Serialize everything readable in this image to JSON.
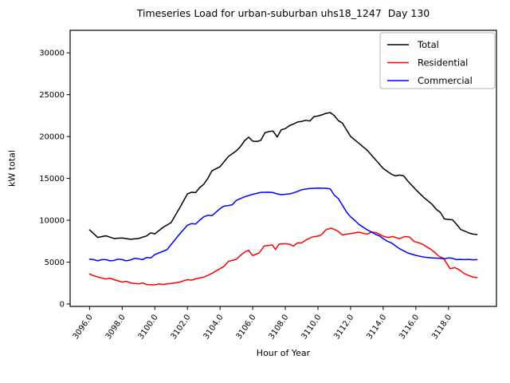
{
  "title": "Timeseries Load for urban-suburban uhs18_1247  Day 130",
  "chart_data": {
    "type": "line",
    "title": "Timeseries Load for urban-suburban uhs18_1247  Day 130",
    "xlabel": "Hour of Year",
    "ylabel": "kW total",
    "xlim": [
      3094.81,
      3120.94
    ],
    "ylim": [
      -290,
      32690
    ],
    "xticks": [
      3096,
      3098,
      3100,
      3102,
      3104,
      3106,
      3108,
      3110,
      3112,
      3114,
      3116,
      3118
    ],
    "xtick_labels": [
      "3096.0",
      "3098.0",
      "3100.0",
      "3102.0",
      "3104.0",
      "3106.0",
      "3108.0",
      "3110.0",
      "3112.0",
      "3114.0",
      "3116.0",
      "3118.0"
    ],
    "yticks": [
      0,
      5000,
      10000,
      15000,
      20000,
      25000,
      30000
    ],
    "ytick_labels": [
      "0",
      "5000",
      "10000",
      "15000",
      "20000",
      "25000",
      "30000"
    ],
    "grid": false,
    "legend_position": "upper right",
    "line_width": 1.5,
    "series": [
      {
        "name": "Total",
        "color": "#000000",
        "x": [
          3096,
          3096.5,
          3097,
          3097.5,
          3098,
          3098.5,
          3099,
          3099.5,
          3099.75,
          3100,
          3100.5,
          3101,
          3101.5,
          3102,
          3102.25,
          3102.5,
          3102.75,
          3103,
          3103.25,
          3103.5,
          3104,
          3104.5,
          3105,
          3105.25,
          3105.5,
          3105.75,
          3106,
          3106.25,
          3106.5,
          3106.75,
          3107,
          3107.25,
          3107.5,
          3107.75,
          3108,
          3108.25,
          3108.5,
          3108.75,
          3109,
          3109.25,
          3109.5,
          3109.75,
          3110,
          3110.25,
          3110.5,
          3110.75,
          3111,
          3111.25,
          3111.5,
          3112,
          3112.5,
          3113,
          3113.5,
          3114,
          3114.5,
          3114.75,
          3115,
          3115.25,
          3115.5,
          3116,
          3116.5,
          3117,
          3117.25,
          3117.5,
          3117.75,
          3118,
          3118.25,
          3118.5,
          3118.75,
          3119,
          3119.25,
          3119.5,
          3119.75
        ],
        "y": [
          8850,
          7950,
          8150,
          7820,
          7880,
          7730,
          7820,
          8130,
          8500,
          8370,
          9150,
          9720,
          11400,
          13150,
          13350,
          13300,
          13900,
          14300,
          15000,
          15900,
          16400,
          17600,
          18300,
          18800,
          19500,
          19930,
          19450,
          19400,
          19550,
          20450,
          20600,
          20650,
          19950,
          20800,
          20950,
          21300,
          21500,
          21740,
          21800,
          21950,
          21850,
          22380,
          22450,
          22600,
          22780,
          22860,
          22500,
          21900,
          21600,
          20000,
          19210,
          18400,
          17300,
          16190,
          15500,
          15300,
          15400,
          15300,
          14700,
          13650,
          12700,
          11900,
          11300,
          10950,
          10160,
          10100,
          10050,
          9520,
          8890,
          8700,
          8475,
          8350,
          8300
        ]
      },
      {
        "name": "Residential",
        "color": "#ff0000",
        "x": [
          3096,
          3096.25,
          3096.5,
          3097,
          3097.25,
          3097.5,
          3098,
          3098.25,
          3098.5,
          3099,
          3099.25,
          3099.5,
          3100,
          3100.25,
          3100.5,
          3101,
          3101.5,
          3102,
          3102.25,
          3102.5,
          3103,
          3103.5,
          3104,
          3104.25,
          3104.5,
          3105,
          3105.25,
          3105.5,
          3105.75,
          3106,
          3106.4,
          3106.7,
          3107,
          3107.2,
          3107.4,
          3107.6,
          3108,
          3108.3,
          3108.5,
          3108.75,
          3109,
          3109.3,
          3109.65,
          3110,
          3110.2,
          3110.5,
          3110.8,
          3111,
          3111.2,
          3111.5,
          3111.8,
          3112,
          3112.5,
          3112.75,
          3113,
          3113.3,
          3113.6,
          3114,
          3114.3,
          3114.6,
          3115,
          3115.3,
          3115.6,
          3115.9,
          3116.2,
          3116.4,
          3116.9,
          3117.2,
          3117.4,
          3117.7,
          3118,
          3118.1,
          3118.4,
          3118.6,
          3119,
          3119.25,
          3119.5,
          3119.75
        ],
        "y": [
          3580,
          3380,
          3230,
          2980,
          3080,
          2900,
          2620,
          2700,
          2520,
          2400,
          2500,
          2320,
          2280,
          2400,
          2330,
          2450,
          2600,
          2900,
          2850,
          3000,
          3200,
          3650,
          4220,
          4500,
          5080,
          5330,
          5800,
          6190,
          6410,
          5780,
          6100,
          6920,
          7000,
          7050,
          6505,
          7140,
          7200,
          7110,
          6920,
          7300,
          7300,
          7680,
          8000,
          8100,
          8250,
          8890,
          9050,
          8900,
          8730,
          8250,
          8350,
          8400,
          8570,
          8450,
          8350,
          8600,
          8500,
          8100,
          7950,
          8050,
          7780,
          8050,
          8000,
          7460,
          7300,
          7140,
          6550,
          6100,
          5715,
          5450,
          4500,
          4220,
          4340,
          4150,
          3590,
          3400,
          3210,
          3150
        ]
      },
      {
        "name": "Commercial",
        "color": "#0000ff",
        "x": [
          3096,
          3096.25,
          3096.5,
          3096.75,
          3097,
          3097.25,
          3097.5,
          3097.75,
          3098,
          3098.25,
          3098.5,
          3098.75,
          3099,
          3099.25,
          3099.5,
          3099.75,
          3100,
          3100.25,
          3100.5,
          3100.75,
          3101,
          3101.5,
          3102,
          3102.25,
          3102.5,
          3102.75,
          3103,
          3103.25,
          3103.5,
          3104,
          3104.25,
          3104.5,
          3104.75,
          3105,
          3105.5,
          3106,
          3106.5,
          3107,
          3107.25,
          3107.5,
          3107.75,
          3108,
          3108.25,
          3108.5,
          3108.75,
          3109,
          3109.5,
          3110,
          3110.5,
          3110.75,
          3111,
          3111.25,
          3111.5,
          3111.75,
          3112,
          3112.25,
          3112.5,
          3113,
          3113.5,
          3113.8,
          3114,
          3114.25,
          3114.5,
          3115,
          3115.5,
          3116,
          3116.5,
          3117,
          3117.5,
          3117.75,
          3118,
          3118.25,
          3118.5,
          3118.75,
          3119,
          3119.25,
          3119.5,
          3119.75
        ],
        "y": [
          5350,
          5300,
          5150,
          5300,
          5300,
          5150,
          5200,
          5350,
          5300,
          5150,
          5250,
          5450,
          5400,
          5300,
          5550,
          5500,
          5900,
          6100,
          6290,
          6500,
          7100,
          8300,
          9400,
          9600,
          9550,
          10000,
          10400,
          10600,
          10550,
          11400,
          11700,
          11750,
          11850,
          12380,
          12800,
          13100,
          13330,
          13350,
          13300,
          13150,
          13050,
          13100,
          13150,
          13270,
          13450,
          13650,
          13800,
          13850,
          13820,
          13750,
          13000,
          12600,
          11800,
          11000,
          10400,
          10000,
          9520,
          8890,
          8350,
          8100,
          7800,
          7500,
          7300,
          6600,
          6100,
          5800,
          5600,
          5500,
          5450,
          5400,
          5500,
          5450,
          5300,
          5320,
          5300,
          5320,
          5280,
          5300
        ]
      }
    ]
  }
}
